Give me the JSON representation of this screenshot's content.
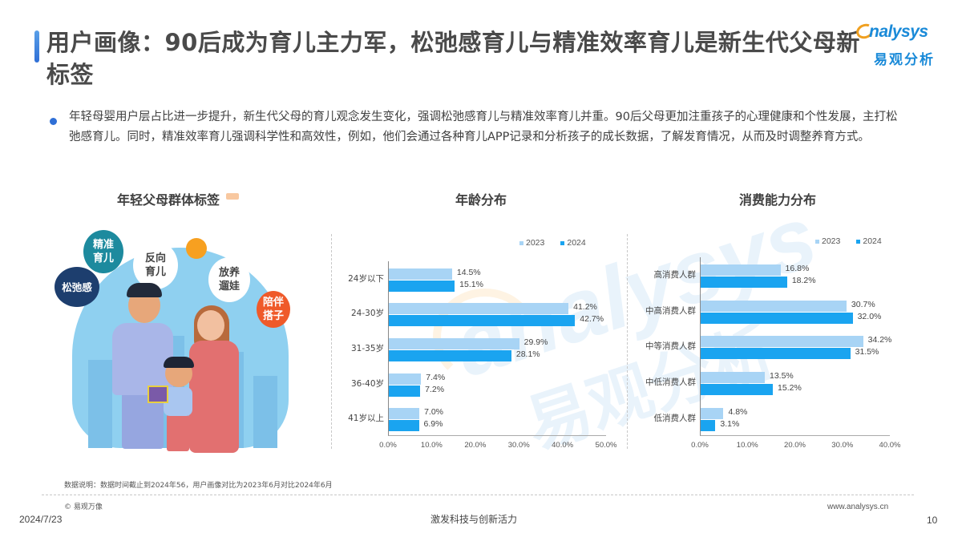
{
  "header": {
    "title": "用户画像：90后成为育儿主力军，松弛感育儿与精准效率育儿是新生代父母新标签",
    "logo": {
      "en": "nalysys",
      "cn": "易观分析"
    },
    "accent_color": "#2f6fd6"
  },
  "summary": {
    "text": "年轻母婴用户层占比进一步提升，新生代父母的育儿观念发生变化，强调松弛感育儿与精准效率育儿并重。90后父母更加注重孩子的心理健康和个性发展，主打松弛感育儿。同时，精准效率育儿强调科学性和高效性，例如，他们会通过各种育儿APP记录和分析孩子的成长数据，了解发育情况，从而及时调整养育方式。"
  },
  "illustration": {
    "title": "年轻父母群体标签",
    "tags": [
      {
        "text": "精准\n育儿",
        "color": "#1d8a9e"
      },
      {
        "text": "反向\n育儿",
        "color": "#ffffff"
      },
      {
        "text": "松弛感",
        "color": "#1d3e6e"
      },
      {
        "text": "放养\n遛娃",
        "color": "#ffffff"
      },
      {
        "text": "陪伴\n搭子",
        "color": "#ef5a2a"
      }
    ]
  },
  "chart_data": [
    {
      "type": "bar",
      "orientation": "horizontal",
      "title": "年龄分布",
      "categories": [
        "24岁以下",
        "24-30岁",
        "31-35岁",
        "36-40岁",
        "41岁以上"
      ],
      "series": [
        {
          "name": "2023",
          "color": "#a8d4f5",
          "values": [
            14.5,
            41.2,
            29.9,
            7.4,
            7.0
          ],
          "labels": [
            "14.5%",
            "41.2%",
            "29.9%",
            "7.4%",
            "7.0%"
          ]
        },
        {
          "name": "2024",
          "color": "#1aa4f0",
          "values": [
            15.1,
            42.7,
            28.1,
            7.2,
            6.9
          ],
          "labels": [
            "15.1%",
            "42.7%",
            "28.1%",
            "7.2%",
            "6.9%"
          ]
        }
      ],
      "xlabel": "",
      "ylabel": "",
      "xlim": [
        0,
        50
      ],
      "xticks": [
        "0.0%",
        "10.0%",
        "20.0%",
        "30.0%",
        "40.0%",
        "50.0%"
      ],
      "legend_position": "top-right",
      "grid": false
    },
    {
      "type": "bar",
      "orientation": "horizontal",
      "title": "消费能力分布",
      "categories": [
        "高消费人群",
        "中高消费人群",
        "中等消费人群",
        "中低消费人群",
        "低消费人群"
      ],
      "series": [
        {
          "name": "2023",
          "color": "#a8d4f5",
          "values": [
            16.8,
            30.7,
            34.2,
            13.5,
            4.8
          ],
          "labels": [
            "16.8%",
            "30.7%",
            "34.2%",
            "13.5%",
            "4.8%"
          ]
        },
        {
          "name": "2024",
          "color": "#1aa4f0",
          "values": [
            18.2,
            32.0,
            31.5,
            15.2,
            3.1
          ],
          "labels": [
            "18.2%",
            "32.0%",
            "31.5%",
            "15.2%",
            "3.1%"
          ]
        }
      ],
      "xlabel": "",
      "ylabel": "",
      "xlim": [
        0,
        40
      ],
      "xticks": [
        "0.0%",
        "10.0%",
        "20.0%",
        "30.0%",
        "40.0%"
      ],
      "legend_position": "top-right",
      "grid": false
    }
  ],
  "footer": {
    "note": "数据说明：数据时间截止到2024年56，用户画像对比为2023年6月对比2024年6月",
    "copyright": "© 易观万像",
    "url": "www.analysys.cn",
    "date": "2024/7/23",
    "slogan": "激发科技与创新活力",
    "page": "10"
  },
  "watermark": {
    "en": "analysys",
    "cn": "易观分析"
  }
}
